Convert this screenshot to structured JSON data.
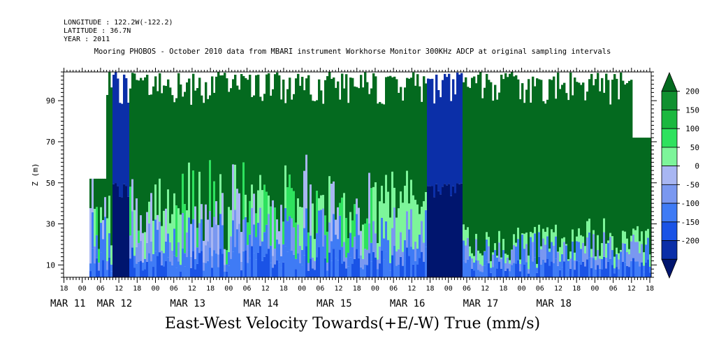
{
  "header": {
    "longitude": "LONGITUDE : 122.2W(-122.2)",
    "latitude": "LATITUDE : 36.7N",
    "year": "YEAR : 2011"
  },
  "chart_data": {
    "type": "heatmap",
    "title": "Mooring PHOBOS - October 2010 data from MBARI instrument Workhorse Monitor 300KHz ADCP at original sampling intervals",
    "xlabel": "East-West Velocity Towards(+E/-W) True (mm/s)",
    "ylabel": "Z (m)",
    "x_hour_ticks": [
      "18",
      "00",
      "06",
      "12",
      "18",
      "00",
      "06",
      "12",
      "18",
      "00",
      "06",
      "12",
      "18",
      "00",
      "06",
      "12",
      "18",
      "00",
      "06",
      "12",
      "18",
      "00",
      "06",
      "12",
      "18",
      "00",
      "06",
      "12",
      "18",
      "00",
      "06",
      "12",
      "18"
    ],
    "x_date_labels": [
      "MAR 11",
      "MAR 12",
      "MAR 13",
      "MAR 14",
      "MAR 15",
      "MAR 16",
      "MAR 17",
      "MAR 18"
    ],
    "y_ticks": [
      "10",
      "30",
      "50",
      "70",
      "90"
    ],
    "ylim": [
      4,
      104
    ],
    "colorbar": {
      "labels": [
        "200",
        "150",
        "100",
        "50",
        "0",
        "-50",
        "-100",
        "-150",
        "-200"
      ],
      "levels": [
        -250,
        -200,
        -150,
        -100,
        -50,
        0,
        50,
        100,
        150,
        200,
        250
      ],
      "colors": [
        "#00156e",
        "#0b2fa8",
        "#1a53e6",
        "#3f7bf5",
        "#7a98f0",
        "#a8b6f2",
        "#7df59a",
        "#2ee25e",
        "#1bb83f",
        "#109030",
        "#046a1f"
      ]
    }
  }
}
